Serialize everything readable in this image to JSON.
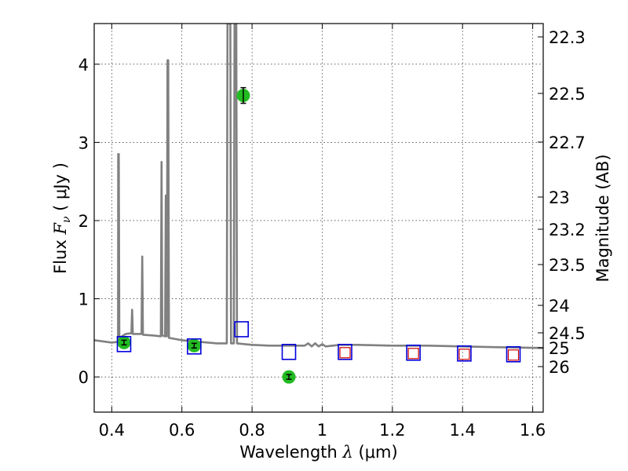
{
  "chart_data": {
    "type": "scatter",
    "xlabel": {
      "prefix": "Wavelength ",
      "symbol": "λ",
      "unit": " (μm)"
    },
    "ylabel": {
      "prefix": "Flux ",
      "symbol": "F",
      "sub": "ν",
      "unit": " ( μJy )"
    },
    "ylabel_right": "Magnitude (AB)",
    "xlim": [
      0.35,
      1.63
    ],
    "ylim": [
      -0.45,
      4.52
    ],
    "x_ticks": [
      0.4,
      0.6,
      0.8,
      1.0,
      1.2,
      1.4,
      1.6
    ],
    "x_tick_labels": [
      "0.4",
      "0.6",
      "0.8",
      "1",
      "1.2",
      "1.4",
      "1.6"
    ],
    "y_ticks": [
      0,
      1,
      2,
      3,
      4
    ],
    "y_tick_labels": [
      "0",
      "1",
      "2",
      "3",
      "4"
    ],
    "mag_ticks": [
      "22.3",
      "22.5",
      "22.7",
      "23",
      "23.2",
      "23.5",
      "24",
      "24.5",
      "25",
      "26"
    ],
    "grid": true,
    "colors": {
      "model": "#808080",
      "observed": "#22bb22",
      "blue_box": "#0000dd",
      "red_box": "#cc0000"
    },
    "series": [
      {
        "kind": "line",
        "points": [
          [
            0.35,
            0.47
          ],
          [
            0.4,
            0.44
          ],
          [
            0.418,
            0.45
          ],
          [
            0.4185,
            2.85
          ],
          [
            0.42,
            2.85
          ],
          [
            0.4215,
            0.5
          ],
          [
            0.44,
            0.55
          ],
          [
            0.456,
            0.56
          ],
          [
            0.458,
            0.86
          ],
          [
            0.46,
            0.55
          ],
          [
            0.48,
            0.55
          ],
          [
            0.485,
            0.55
          ],
          [
            0.487,
            1.54
          ],
          [
            0.489,
            0.54
          ],
          [
            0.52,
            0.53
          ],
          [
            0.54,
            0.52
          ],
          [
            0.542,
            2.75
          ],
          [
            0.544,
            0.53
          ],
          [
            0.552,
            0.52
          ],
          [
            0.554,
            2.32
          ],
          [
            0.556,
            0.52
          ],
          [
            0.557,
            0.52
          ],
          [
            0.559,
            4.05
          ],
          [
            0.561,
            4.05
          ],
          [
            0.563,
            0.5
          ],
          [
            0.6,
            0.47
          ],
          [
            0.65,
            0.45
          ],
          [
            0.7,
            0.43
          ],
          [
            0.728,
            0.43
          ],
          [
            0.73,
            4.52
          ],
          [
            0.738,
            4.52
          ],
          [
            0.74,
            0.43
          ],
          [
            0.748,
            0.43
          ],
          [
            0.75,
            4.52
          ],
          [
            0.755,
            4.52
          ],
          [
            0.757,
            0.43
          ],
          [
            0.8,
            0.41
          ],
          [
            0.85,
            0.4
          ],
          [
            0.9,
            0.4
          ],
          [
            0.95,
            0.4
          ],
          [
            0.96,
            0.43
          ],
          [
            0.97,
            0.39
          ],
          [
            0.98,
            0.43
          ],
          [
            0.99,
            0.39
          ],
          [
            1.0,
            0.42
          ],
          [
            1.01,
            0.39
          ],
          [
            1.05,
            0.41
          ],
          [
            1.1,
            0.41
          ],
          [
            1.2,
            0.4
          ],
          [
            1.3,
            0.4
          ],
          [
            1.4,
            0.39
          ],
          [
            1.5,
            0.38
          ],
          [
            1.63,
            0.37
          ]
        ]
      },
      {
        "kind": "points",
        "points": [
          {
            "x": 0.435,
            "y": 0.44,
            "err": 0.03
          },
          {
            "x": 0.635,
            "y": 0.4,
            "err": 0.03
          },
          {
            "x": 0.775,
            "y": 3.6,
            "err": 0.1
          },
          {
            "x": 0.905,
            "y": 0.0,
            "err": 0.03
          }
        ]
      },
      {
        "kind": "blue_boxes",
        "points": [
          {
            "x": 0.435,
            "y": 0.42
          },
          {
            "x": 0.635,
            "y": 0.39
          },
          {
            "x": 0.77,
            "y": 0.61
          },
          {
            "x": 0.905,
            "y": 0.32
          },
          {
            "x": 1.065,
            "y": 0.32
          },
          {
            "x": 1.26,
            "y": 0.31
          },
          {
            "x": 1.405,
            "y": 0.3
          },
          {
            "x": 1.545,
            "y": 0.29
          }
        ]
      },
      {
        "kind": "red_boxes",
        "points": [
          {
            "x": 1.065,
            "y": 0.31
          },
          {
            "x": 1.26,
            "y": 0.3
          },
          {
            "x": 1.405,
            "y": 0.29
          },
          {
            "x": 1.545,
            "y": 0.28
          }
        ]
      }
    ]
  }
}
